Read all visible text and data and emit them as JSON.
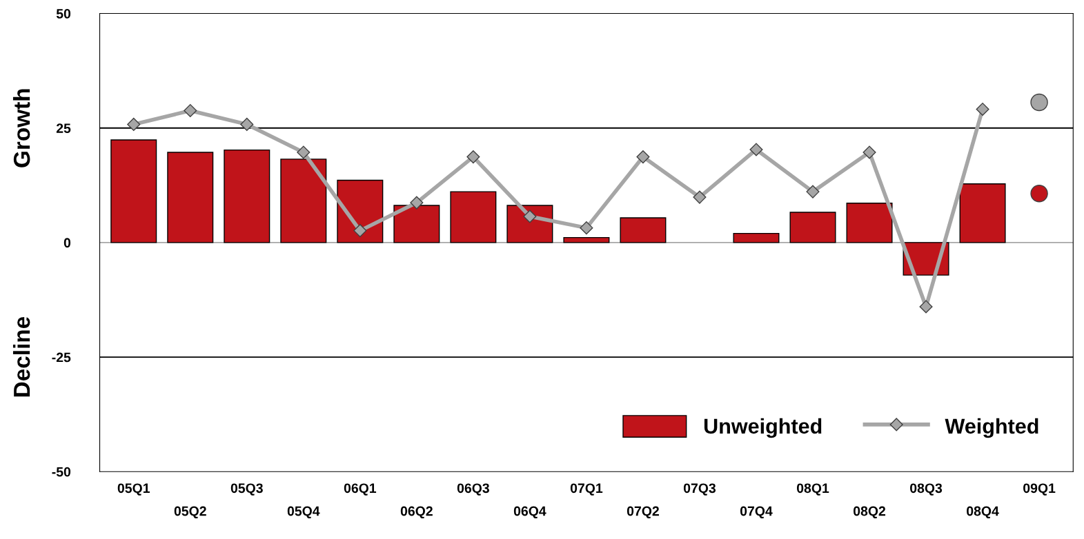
{
  "chart_data": {
    "type": "bar",
    "categories": [
      "05Q1",
      "05Q2",
      "05Q3",
      "05Q4",
      "06Q1",
      "06Q2",
      "06Q3",
      "06Q4",
      "07Q1",
      "07Q2",
      "07Q3",
      "07Q4",
      "08Q1",
      "08Q2",
      "08Q3",
      "08Q4",
      "09Q1"
    ],
    "series": [
      {
        "name": "Unweighted",
        "color": "#c0141a",
        "values": [
          22.4,
          19.7,
          20.2,
          18.2,
          13.6,
          8.1,
          11.1,
          8.1,
          1.1,
          5.4,
          null,
          2.0,
          6.6,
          8.6,
          -7.1,
          12.8,
          null
        ]
      },
      {
        "name": "Weighted",
        "type": "line",
        "color": "#a6a6a6",
        "marker": "diamond",
        "line_style": "solid",
        "values": [
          25.8,
          28.8,
          25.8,
          19.7,
          2.6,
          8.7,
          18.7,
          5.7,
          3.2,
          18.7,
          9.9,
          20.3,
          11.1,
          19.7,
          -14.0,
          29.1,
          null
        ]
      },
      {
        "type": "scatter",
        "color": "#a6a6a6",
        "marker": "circle",
        "x": [
          "09Q1"
        ],
        "values": [
          30.6
        ]
      },
      {
        "type": "scatter",
        "color": "#c0141a",
        "marker": "circle",
        "x": [
          "09Q1"
        ],
        "values": [
          10.7
        ]
      }
    ],
    "ylim": [
      -50,
      50
    ],
    "yticks": [
      -50,
      -25,
      0,
      25,
      50
    ],
    "ref_lines": [
      {
        "axis": "y",
        "value": 25,
        "color": "#000000"
      },
      {
        "axis": "y",
        "value": 0,
        "color": "#a6a6a6"
      },
      {
        "axis": "y",
        "value": -25,
        "color": "#000000"
      }
    ],
    "annotations": [
      "Growth",
      "Decline"
    ],
    "grid": false,
    "legend": "bottom right"
  }
}
